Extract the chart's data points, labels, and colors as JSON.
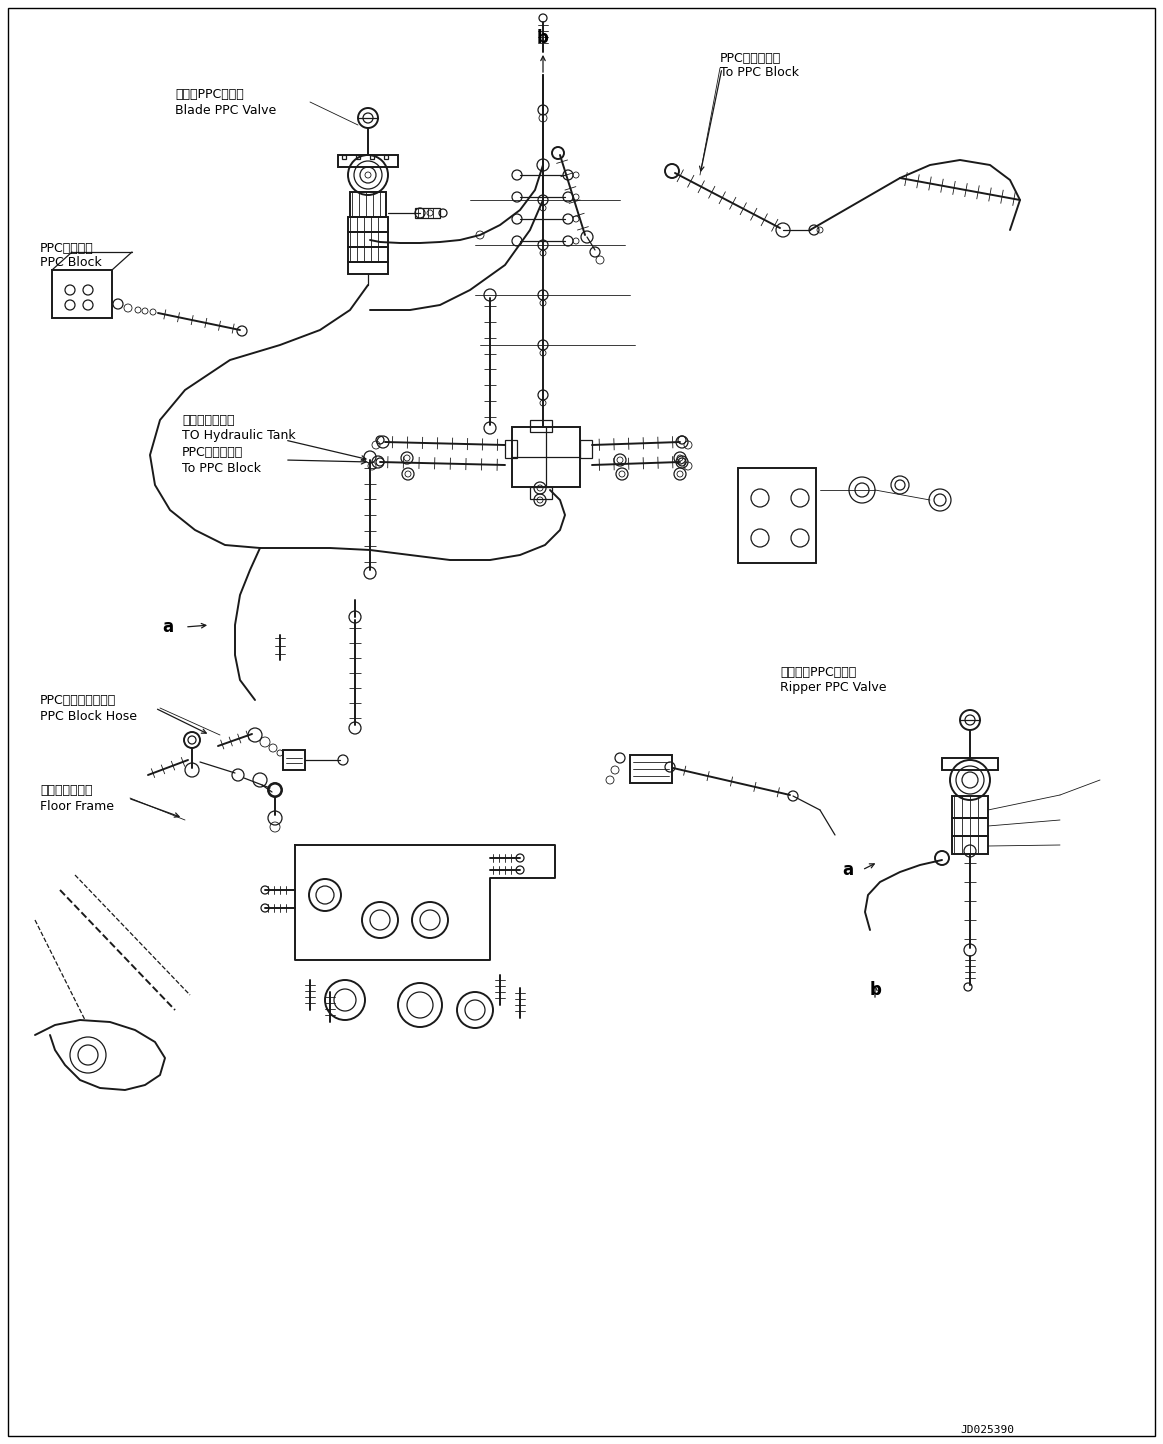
{
  "bg_color": "#ffffff",
  "line_color": "#1a1a1a",
  "fig_width": 11.63,
  "fig_height": 14.44,
  "dpi": 100,
  "part_id": "JD025390",
  "labels": {
    "blade_ppc_valve_jp": "ブレーPPCバルブ",
    "blade_ppc_valve_en": "Blade PPC Valve",
    "ppc_block_jp": "PPCブロック",
    "ppc_block_en": "PPC Block",
    "to_ppc_block_jp": "PPCブロックへ",
    "to_ppc_block_en": "To PPC Block",
    "hydraulic_tank_jp": "作動油タンクへ",
    "hydraulic_tank_en": "TO Hydraulic Tank",
    "to_ppc_block2_jp": "PPCブロックへ",
    "to_ppc_block2_en": "To PPC Block",
    "ppc_block_hose_jp": "PPCブロックホース",
    "ppc_block_hose_en": "PPC Block Hose",
    "floor_frame_jp": "フロアフレーム",
    "floor_frame_en": "Floor Frame",
    "ripper_ppc_valve_jp": "リッパ　PPCバルブ",
    "ripper_ppc_valve_en": "Ripper PPC Valve",
    "label_a1": "a",
    "label_b1": "b",
    "label_a2": "a",
    "label_b2": "b"
  },
  "font_sizes": {
    "label_jp": 9,
    "label_en": 9,
    "part_id": 8,
    "ab_label": 12
  }
}
